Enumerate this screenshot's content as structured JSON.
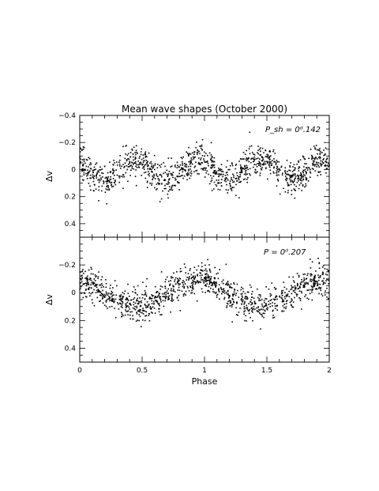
{
  "chart_data": {
    "type": "scatter",
    "title": "Mean wave shapes (October 2000)",
    "xlabel": "Phase",
    "x_ticks": [
      "0",
      "0.5",
      "1",
      "1.5",
      "2"
    ],
    "xlim": [
      0,
      2
    ],
    "panels": [
      {
        "name": "top",
        "ylabel": "Δv",
        "ylim": [
          0.5,
          -0.4
        ],
        "y_ticks": [
          "−0.4",
          "−0.2",
          "0",
          "0.2",
          "0.4"
        ],
        "annotation": "P_sh = 0ᵈ.142",
        "wave": {
          "mean": 0.0,
          "amplitude": 0.075,
          "cycles_per_unit_phase": 2,
          "peak_phase": 0.95,
          "scatter": 0.075,
          "n_points": 1150
        }
      },
      {
        "name": "bottom",
        "ylabel": "Δv",
        "ylim": [
          0.5,
          -0.4
        ],
        "y_ticks": [
          "−0.2",
          "0",
          "0.2",
          "0.4"
        ],
        "annotation": "P = 0ᵈ.207",
        "wave": {
          "mean": 0.0,
          "amplitude": 0.095,
          "cycles_per_unit_phase": 1,
          "peak_phase": 0.95,
          "scatter": 0.07,
          "n_points": 1150
        }
      }
    ],
    "marker_color": "#000000",
    "grid": false
  }
}
